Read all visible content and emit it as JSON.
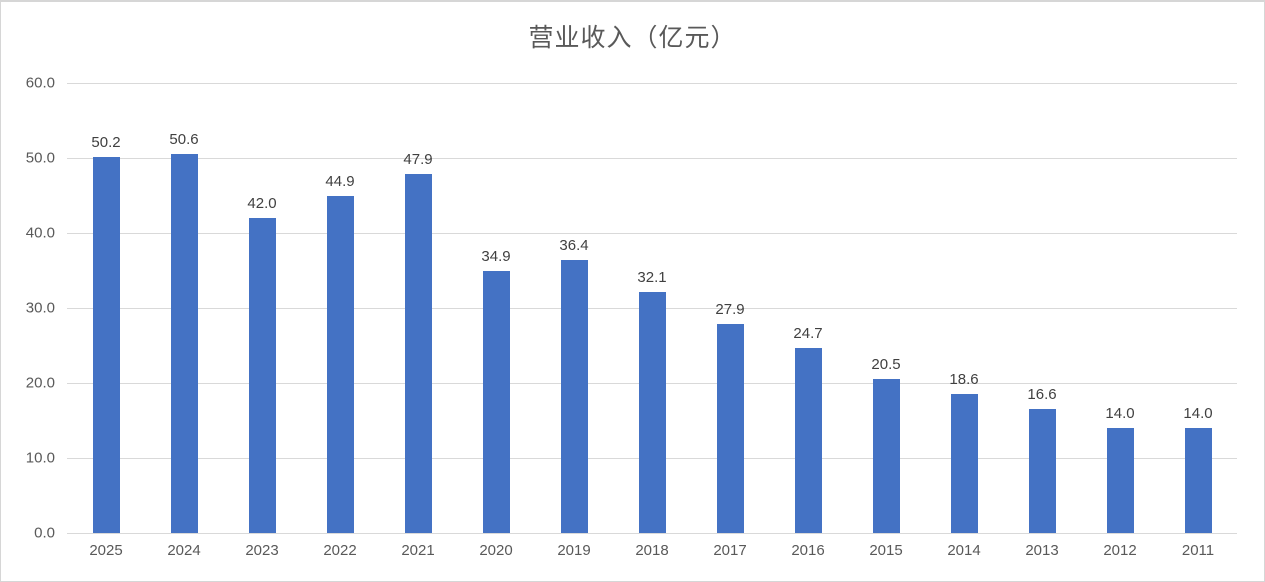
{
  "chart_data": {
    "type": "bar",
    "title": "营业收入（亿元）",
    "categories": [
      "2025",
      "2024",
      "2023",
      "2022",
      "2021",
      "2020",
      "2019",
      "2018",
      "2017",
      "2016",
      "2015",
      "2014",
      "2013",
      "2012",
      "2011"
    ],
    "values": [
      50.2,
      50.6,
      42.0,
      44.9,
      47.9,
      34.9,
      36.4,
      32.1,
      27.9,
      24.7,
      20.5,
      18.6,
      16.6,
      14.0,
      14.0
    ],
    "data_labels": [
      "50.2",
      "50.6",
      "42.0",
      "44.9",
      "47.9",
      "34.9",
      "36.4",
      "32.1",
      "27.9",
      "24.7",
      "20.5",
      "18.6",
      "16.6",
      "14.0",
      "14.0"
    ],
    "xlabel": "",
    "ylabel": "",
    "ylim": [
      0,
      60
    ],
    "ytick_step": 10,
    "ytick_labels": [
      "60.0",
      "50.0",
      "40.0",
      "30.0",
      "20.0",
      "10.0",
      "0.0"
    ],
    "grid": true,
    "legend": false,
    "colors": {
      "bar": "#4472c4",
      "gridline": "#d9d9d9",
      "axis_text": "#595959",
      "data_label_text": "#404040",
      "title_text": "#595959",
      "background": "#ffffff",
      "border": "#d6d6d6"
    }
  }
}
